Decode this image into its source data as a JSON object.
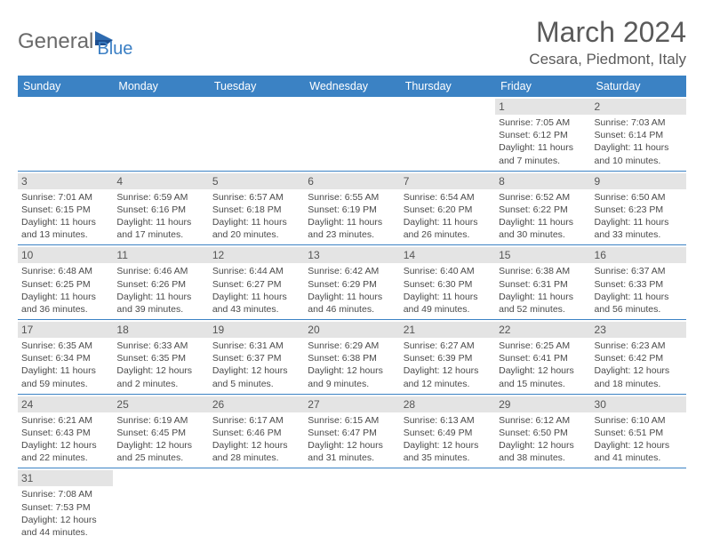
{
  "logo": {
    "word1": "General",
    "word2": "Blue"
  },
  "title": "March 2024",
  "location": "Cesara, Piedmont, Italy",
  "colors": {
    "header_bg": "#3b82c4",
    "daynum_bg": "#e4e4e4",
    "text": "#4a4a4a"
  },
  "day_headers": [
    "Sunday",
    "Monday",
    "Tuesday",
    "Wednesday",
    "Thursday",
    "Friday",
    "Saturday"
  ],
  "weeks": [
    [
      null,
      null,
      null,
      null,
      null,
      {
        "n": "1",
        "sr": "Sunrise: 7:05 AM",
        "ss": "Sunset: 6:12 PM",
        "d1": "Daylight: 11 hours",
        "d2": "and 7 minutes."
      },
      {
        "n": "2",
        "sr": "Sunrise: 7:03 AM",
        "ss": "Sunset: 6:14 PM",
        "d1": "Daylight: 11 hours",
        "d2": "and 10 minutes."
      }
    ],
    [
      {
        "n": "3",
        "sr": "Sunrise: 7:01 AM",
        "ss": "Sunset: 6:15 PM",
        "d1": "Daylight: 11 hours",
        "d2": "and 13 minutes."
      },
      {
        "n": "4",
        "sr": "Sunrise: 6:59 AM",
        "ss": "Sunset: 6:16 PM",
        "d1": "Daylight: 11 hours",
        "d2": "and 17 minutes."
      },
      {
        "n": "5",
        "sr": "Sunrise: 6:57 AM",
        "ss": "Sunset: 6:18 PM",
        "d1": "Daylight: 11 hours",
        "d2": "and 20 minutes."
      },
      {
        "n": "6",
        "sr": "Sunrise: 6:55 AM",
        "ss": "Sunset: 6:19 PM",
        "d1": "Daylight: 11 hours",
        "d2": "and 23 minutes."
      },
      {
        "n": "7",
        "sr": "Sunrise: 6:54 AM",
        "ss": "Sunset: 6:20 PM",
        "d1": "Daylight: 11 hours",
        "d2": "and 26 minutes."
      },
      {
        "n": "8",
        "sr": "Sunrise: 6:52 AM",
        "ss": "Sunset: 6:22 PM",
        "d1": "Daylight: 11 hours",
        "d2": "and 30 minutes."
      },
      {
        "n": "9",
        "sr": "Sunrise: 6:50 AM",
        "ss": "Sunset: 6:23 PM",
        "d1": "Daylight: 11 hours",
        "d2": "and 33 minutes."
      }
    ],
    [
      {
        "n": "10",
        "sr": "Sunrise: 6:48 AM",
        "ss": "Sunset: 6:25 PM",
        "d1": "Daylight: 11 hours",
        "d2": "and 36 minutes."
      },
      {
        "n": "11",
        "sr": "Sunrise: 6:46 AM",
        "ss": "Sunset: 6:26 PM",
        "d1": "Daylight: 11 hours",
        "d2": "and 39 minutes."
      },
      {
        "n": "12",
        "sr": "Sunrise: 6:44 AM",
        "ss": "Sunset: 6:27 PM",
        "d1": "Daylight: 11 hours",
        "d2": "and 43 minutes."
      },
      {
        "n": "13",
        "sr": "Sunrise: 6:42 AM",
        "ss": "Sunset: 6:29 PM",
        "d1": "Daylight: 11 hours",
        "d2": "and 46 minutes."
      },
      {
        "n": "14",
        "sr": "Sunrise: 6:40 AM",
        "ss": "Sunset: 6:30 PM",
        "d1": "Daylight: 11 hours",
        "d2": "and 49 minutes."
      },
      {
        "n": "15",
        "sr": "Sunrise: 6:38 AM",
        "ss": "Sunset: 6:31 PM",
        "d1": "Daylight: 11 hours",
        "d2": "and 52 minutes."
      },
      {
        "n": "16",
        "sr": "Sunrise: 6:37 AM",
        "ss": "Sunset: 6:33 PM",
        "d1": "Daylight: 11 hours",
        "d2": "and 56 minutes."
      }
    ],
    [
      {
        "n": "17",
        "sr": "Sunrise: 6:35 AM",
        "ss": "Sunset: 6:34 PM",
        "d1": "Daylight: 11 hours",
        "d2": "and 59 minutes."
      },
      {
        "n": "18",
        "sr": "Sunrise: 6:33 AM",
        "ss": "Sunset: 6:35 PM",
        "d1": "Daylight: 12 hours",
        "d2": "and 2 minutes."
      },
      {
        "n": "19",
        "sr": "Sunrise: 6:31 AM",
        "ss": "Sunset: 6:37 PM",
        "d1": "Daylight: 12 hours",
        "d2": "and 5 minutes."
      },
      {
        "n": "20",
        "sr": "Sunrise: 6:29 AM",
        "ss": "Sunset: 6:38 PM",
        "d1": "Daylight: 12 hours",
        "d2": "and 9 minutes."
      },
      {
        "n": "21",
        "sr": "Sunrise: 6:27 AM",
        "ss": "Sunset: 6:39 PM",
        "d1": "Daylight: 12 hours",
        "d2": "and 12 minutes."
      },
      {
        "n": "22",
        "sr": "Sunrise: 6:25 AM",
        "ss": "Sunset: 6:41 PM",
        "d1": "Daylight: 12 hours",
        "d2": "and 15 minutes."
      },
      {
        "n": "23",
        "sr": "Sunrise: 6:23 AM",
        "ss": "Sunset: 6:42 PM",
        "d1": "Daylight: 12 hours",
        "d2": "and 18 minutes."
      }
    ],
    [
      {
        "n": "24",
        "sr": "Sunrise: 6:21 AM",
        "ss": "Sunset: 6:43 PM",
        "d1": "Daylight: 12 hours",
        "d2": "and 22 minutes."
      },
      {
        "n": "25",
        "sr": "Sunrise: 6:19 AM",
        "ss": "Sunset: 6:45 PM",
        "d1": "Daylight: 12 hours",
        "d2": "and 25 minutes."
      },
      {
        "n": "26",
        "sr": "Sunrise: 6:17 AM",
        "ss": "Sunset: 6:46 PM",
        "d1": "Daylight: 12 hours",
        "d2": "and 28 minutes."
      },
      {
        "n": "27",
        "sr": "Sunrise: 6:15 AM",
        "ss": "Sunset: 6:47 PM",
        "d1": "Daylight: 12 hours",
        "d2": "and 31 minutes."
      },
      {
        "n": "28",
        "sr": "Sunrise: 6:13 AM",
        "ss": "Sunset: 6:49 PM",
        "d1": "Daylight: 12 hours",
        "d2": "and 35 minutes."
      },
      {
        "n": "29",
        "sr": "Sunrise: 6:12 AM",
        "ss": "Sunset: 6:50 PM",
        "d1": "Daylight: 12 hours",
        "d2": "and 38 minutes."
      },
      {
        "n": "30",
        "sr": "Sunrise: 6:10 AM",
        "ss": "Sunset: 6:51 PM",
        "d1": "Daylight: 12 hours",
        "d2": "and 41 minutes."
      }
    ],
    [
      {
        "n": "31",
        "sr": "Sunrise: 7:08 AM",
        "ss": "Sunset: 7:53 PM",
        "d1": "Daylight: 12 hours",
        "d2": "and 44 minutes."
      },
      null,
      null,
      null,
      null,
      null,
      null
    ]
  ]
}
